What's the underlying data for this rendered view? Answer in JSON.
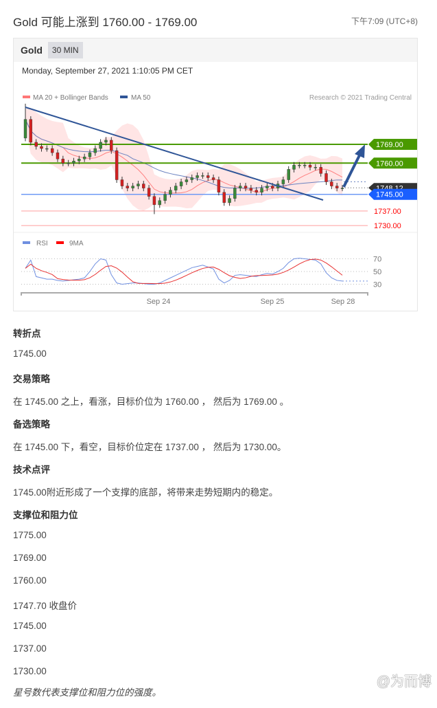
{
  "header": {
    "title": "Gold 可能上涨到 1760.00 - 1769.00",
    "time": "下午7:09 (UTC+8)"
  },
  "chart_box": {
    "symbol": "Gold",
    "timeframe": "30 MIN",
    "datetime": "Monday, September 27, 2021 1:10:05 PM CET"
  },
  "chart_data": {
    "type": "candlestick",
    "legend": [
      "MA 20 + Bollinger Bands",
      "MA 50"
    ],
    "copyright": "Research © 2021 Trading Central",
    "x_ticks": [
      "Sep 24",
      "Sep 25",
      "Sep 28"
    ],
    "closes": [
      1781,
      1770,
      1768,
      1767,
      1767,
      1765,
      1762,
      1760,
      1760,
      1761,
      1762,
      1763,
      1765,
      1767,
      1770,
      1771,
      1766,
      1752,
      1749,
      1748,
      1749,
      1750,
      1748,
      1744,
      1740,
      1742,
      1745,
      1747,
      1749,
      1751,
      1752,
      1753,
      1754,
      1754,
      1753,
      1752,
      1746,
      1741,
      1743,
      1748,
      1749,
      1748,
      1747,
      1746,
      1748,
      1749,
      1748,
      1750,
      1752,
      1757,
      1759,
      1759,
      1759,
      1758,
      1758,
      1755,
      1751,
      1749,
      1748,
      1748
    ],
    "levels": {
      "resistance": [
        {
          "value": "1769.00",
          "color": "#4a9a00"
        },
        {
          "value": "1760.00",
          "color": "#4a9a00"
        }
      ],
      "last": {
        "value": "1748.12",
        "color": "#333333"
      },
      "pivot": {
        "value": "1745.00",
        "color": "#1a5fff"
      },
      "support": [
        {
          "value": "1737.00",
          "color": "#ff0000"
        },
        {
          "value": "1730.00",
          "color": "#ff0000"
        }
      ]
    },
    "rsi_legend": [
      "RSI",
      "9MA"
    ],
    "rsi_ticks": [
      "70",
      "50",
      "30"
    ],
    "rsi": [
      55,
      68,
      42,
      40,
      38,
      38,
      36,
      35,
      36,
      37,
      38,
      40,
      50,
      62,
      70,
      68,
      45,
      32,
      30,
      31,
      32,
      32,
      31,
      30,
      30,
      32,
      36,
      40,
      44,
      48,
      52,
      56,
      58,
      60,
      57,
      54,
      38,
      32,
      36,
      44,
      45,
      44,
      43,
      42,
      45,
      47,
      46,
      50,
      55,
      64,
      70,
      71,
      70,
      69,
      68,
      62,
      48,
      40,
      36,
      35
    ]
  },
  "sections": [
    {
      "heading": "转折点",
      "text": "1745.00"
    },
    {
      "heading": "交易策略",
      "text": "在 1745.00 之上，看涨，目标价位为 1760.00 ， 然后为 1769.00 。"
    },
    {
      "heading": "备选策略",
      "text": "在 1745.00 下，看空，目标价位定在 1737.00 ， 然后为 1730.00。"
    },
    {
      "heading": "技术点评",
      "text": "1745.00附近形成了一个支撑的底部，将带来走势短期内的稳定。"
    },
    {
      "heading": "支撑位和阻力位",
      "text": "1775.00"
    }
  ],
  "levels_list": [
    "1769.00",
    "1760.00",
    "1747.70 收盘价",
    "1745.00",
    "1737.00",
    "1730.00"
  ],
  "footnote": "星号数代表支撑位和阻力位的强度。",
  "watermark": "@为而博"
}
